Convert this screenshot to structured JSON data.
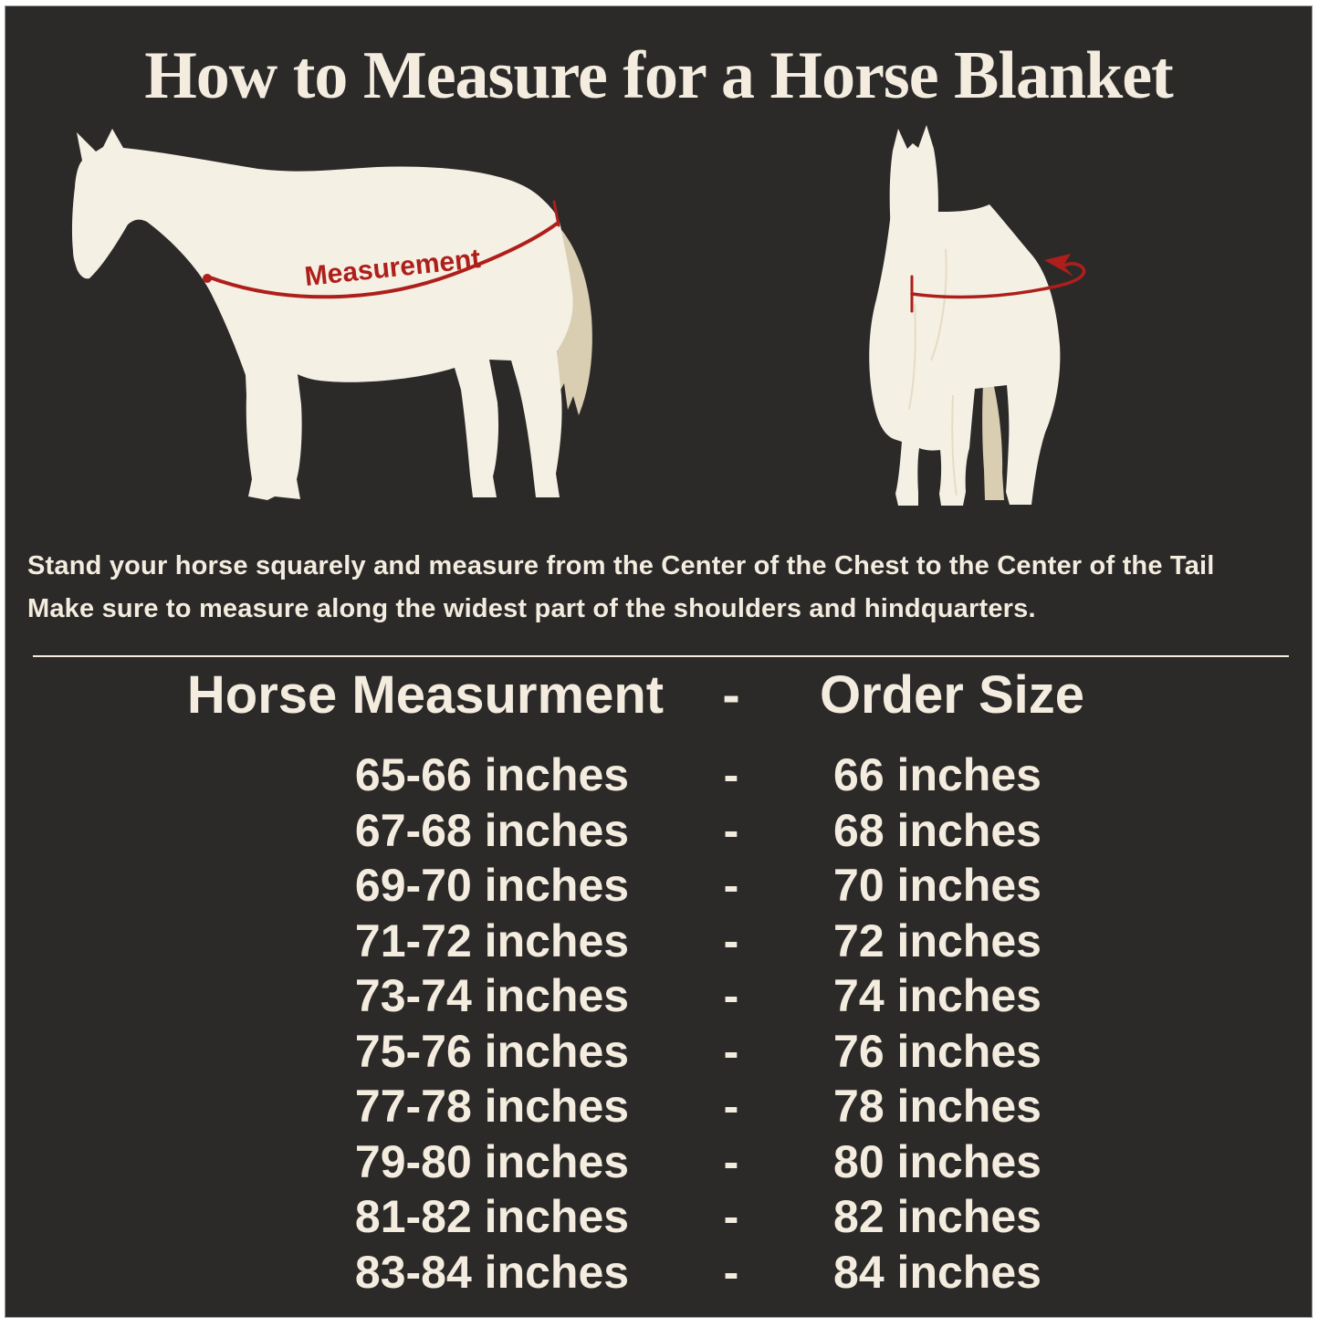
{
  "title": "How to Measure for a Horse Blanket",
  "diagram": {
    "measurement_label": "Measurement"
  },
  "instructions": {
    "line1": "Stand your horse squarely and measure from the Center of the Chest to the Center of the Tail",
    "line2": "Make sure to measure along the widest part of the shoulders and hindquarters."
  },
  "size_chart": {
    "header": {
      "measurement": "Horse Measurment",
      "separator": "-",
      "size": "Order Size"
    },
    "separator": "-",
    "rows": [
      {
        "measurement": "65-66 inches",
        "size": "66 inches"
      },
      {
        "measurement": "67-68 inches",
        "size": "68 inches"
      },
      {
        "measurement": "69-70 inches",
        "size": "70 inches"
      },
      {
        "measurement": "71-72 inches",
        "size": "72 inches"
      },
      {
        "measurement": "73-74 inches",
        "size": "74 inches"
      },
      {
        "measurement": "75-76 inches",
        "size": "76 inches"
      },
      {
        "measurement": "77-78 inches",
        "size": "78 inches"
      },
      {
        "measurement": "79-80 inches",
        "size": "80 inches"
      },
      {
        "measurement": "81-82 inches",
        "size": "82 inches"
      },
      {
        "measurement": "83-84 inches",
        "size": "84 inches"
      }
    ]
  },
  "colors": {
    "panel_background": "#2c2a29",
    "text_cream": "#f3ecdf",
    "horse_cream": "#f5f0e4",
    "tail_tan": "#d9cdb2",
    "accent_red": "#ae1f1b",
    "page_border": "#ffffff"
  }
}
